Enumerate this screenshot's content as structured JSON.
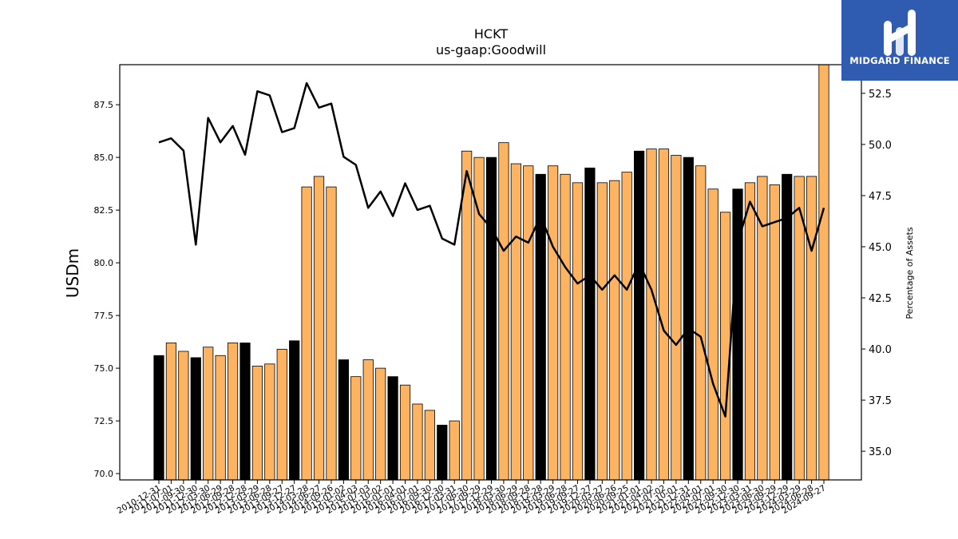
{
  "title": "HCKT",
  "subtitle": "us-gaap:Goodwill",
  "logo": {
    "text": "MIDGARD FINANCE",
    "color": "#2f5bb0"
  },
  "colors": {
    "bar_regular": "#fdb462",
    "bar_highlight": "#000000",
    "line": "#000000"
  },
  "chart_data": {
    "type": "bar",
    "xlabel": "",
    "ylabel": "USDm",
    "y2label": "Percentage of Assets",
    "ylim": [
      69.7,
      89.4
    ],
    "y2lim": [
      33.6,
      53.9
    ],
    "yticks": [
      "70.0",
      "72.5",
      "75.0",
      "77.5",
      "80.0",
      "82.5",
      "85.0",
      "87.5"
    ],
    "y2ticks": [
      "35.0",
      "37.5",
      "40.0",
      "42.5",
      "45.0",
      "47.5",
      "50.0",
      "52.5"
    ],
    "categories": [
      "2010-12-31",
      "2011-07-01",
      "2011-09-30",
      "2011-12-30",
      "2012-03-30",
      "2012-06-29",
      "2012-09-28",
      "2012-12-28",
      "2013-03-29",
      "2013-06-28",
      "2013-09-27",
      "2013-12-27",
      "2014-03-28",
      "2014-06-27",
      "2014-09-26",
      "2015-01-02",
      "2015-04-03",
      "2015-07-03",
      "2015-10-02",
      "2016-01-01",
      "2016-04-01",
      "2016-07-01",
      "2016-09-30",
      "2016-12-30",
      "2017-03-31",
      "2017-06-30",
      "2017-09-29",
      "2017-12-29",
      "2018-03-30",
      "2018-06-29",
      "2018-09-28",
      "2018-12-28",
      "2019-03-29",
      "2019-06-28",
      "2019-09-27",
      "2019-12-27",
      "2020-03-27",
      "2020-06-26",
      "2020-09-25",
      "2021-01-01",
      "2021-04-02",
      "2021-07-02",
      "2021-10-01",
      "2021-12-31",
      "2022-04-01",
      "2022-07-01",
      "2022-09-30",
      "2022-12-30",
      "2023-03-31",
      "2023-06-30",
      "2023-09-29",
      "2023-12-29",
      "2024-03-29",
      "2024-06-28",
      "2024-09-27"
    ],
    "series": [
      {
        "type": "bar",
        "values": [
          75.6,
          76.2,
          75.8,
          75.5,
          76.0,
          75.6,
          76.2,
          76.2,
          75.1,
          75.2,
          75.9,
          76.3,
          83.6,
          84.1,
          83.6,
          75.4,
          74.6,
          75.4,
          75.0,
          74.6,
          74.2,
          73.3,
          73.0,
          72.3,
          72.5,
          85.3,
          85.0,
          85.0,
          85.7,
          84.7,
          84.6,
          84.2,
          84.6,
          84.2,
          83.8,
          84.5,
          83.8,
          83.9,
          84.3,
          85.3,
          85.4,
          85.4,
          85.1,
          85.0,
          84.6,
          83.5,
          82.4,
          83.5,
          83.8,
          84.1,
          83.7,
          84.2,
          84.1,
          84.1,
          89.6
        ],
        "highlight": [
          true,
          false,
          false,
          true,
          false,
          false,
          false,
          true,
          false,
          false,
          false,
          true,
          false,
          false,
          false,
          true,
          false,
          false,
          false,
          true,
          false,
          false,
          false,
          true,
          false,
          false,
          false,
          true,
          false,
          false,
          false,
          true,
          false,
          false,
          false,
          true,
          false,
          false,
          false,
          true,
          false,
          false,
          false,
          true,
          false,
          false,
          false,
          true,
          false,
          false,
          false,
          true,
          false,
          false,
          false
        ]
      },
      {
        "type": "line",
        "axis": "right",
        "values": [
          50.1,
          50.3,
          49.7,
          45.1,
          51.3,
          50.1,
          50.9,
          49.5,
          52.6,
          52.4,
          50.6,
          50.8,
          53.0,
          51.8,
          52.0,
          49.4,
          49.0,
          46.9,
          47.7,
          46.5,
          48.1,
          46.8,
          47.0,
          45.4,
          45.1,
          48.7,
          46.6,
          45.9,
          44.8,
          45.5,
          45.2,
          46.5,
          45.0,
          44.0,
          43.2,
          43.6,
          42.9,
          43.6,
          42.9,
          44.2,
          42.9,
          40.9,
          40.2,
          41.0,
          40.6,
          38.3,
          36.7,
          45.2,
          47.2,
          46.0,
          46.2,
          46.4,
          46.9,
          44.8,
          46.9
        ]
      }
    ],
    "grid": false
  }
}
